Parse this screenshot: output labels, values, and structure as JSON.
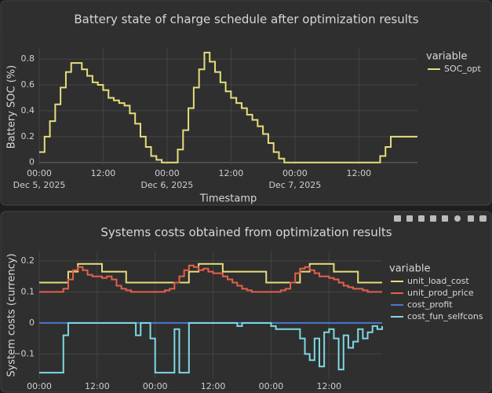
{
  "chart_data": [
    {
      "type": "line",
      "line_shape": "hv",
      "title": "Battery state of charge schedule after optimization results",
      "xlabel": "Timestamp",
      "ylabel": "Battery SOC (%)",
      "legend_title": "variable",
      "legend": "right",
      "grid": true,
      "x": [
        "2025-12-05 00:00",
        "2025-12-05 01:00",
        "2025-12-05 02:00",
        "2025-12-05 03:00",
        "2025-12-05 04:00",
        "2025-12-05 05:00",
        "2025-12-05 06:00",
        "2025-12-05 07:00",
        "2025-12-05 08:00",
        "2025-12-05 09:00",
        "2025-12-05 10:00",
        "2025-12-05 11:00",
        "2025-12-05 12:00",
        "2025-12-05 13:00",
        "2025-12-05 14:00",
        "2025-12-05 15:00",
        "2025-12-05 16:00",
        "2025-12-05 17:00",
        "2025-12-05 18:00",
        "2025-12-05 19:00",
        "2025-12-05 20:00",
        "2025-12-05 21:00",
        "2025-12-05 22:00",
        "2025-12-05 23:00",
        "2025-12-06 00:00",
        "2025-12-06 01:00",
        "2025-12-06 02:00",
        "2025-12-06 03:00",
        "2025-12-06 04:00",
        "2025-12-06 05:00",
        "2025-12-06 06:00",
        "2025-12-06 07:00",
        "2025-12-06 08:00",
        "2025-12-06 09:00",
        "2025-12-06 10:00",
        "2025-12-06 11:00",
        "2025-12-06 12:00",
        "2025-12-06 13:00",
        "2025-12-06 14:00",
        "2025-12-06 15:00",
        "2025-12-06 16:00",
        "2025-12-06 17:00",
        "2025-12-06 18:00",
        "2025-12-06 19:00",
        "2025-12-06 20:00",
        "2025-12-06 21:00",
        "2025-12-06 22:00",
        "2025-12-06 23:00",
        "2025-12-07 00:00",
        "2025-12-07 01:00",
        "2025-12-07 02:00",
        "2025-12-07 03:00",
        "2025-12-07 04:00",
        "2025-12-07 05:00",
        "2025-12-07 06:00",
        "2025-12-07 07:00",
        "2025-12-07 08:00",
        "2025-12-07 09:00",
        "2025-12-07 10:00",
        "2025-12-07 11:00",
        "2025-12-07 12:00",
        "2025-12-07 13:00",
        "2025-12-07 14:00",
        "2025-12-07 15:00",
        "2025-12-07 16:00",
        "2025-12-07 17:00",
        "2025-12-07 18:00",
        "2025-12-07 19:00",
        "2025-12-07 20:00",
        "2025-12-07 21:00",
        "2025-12-07 22:00",
        "2025-12-07 23:00"
      ],
      "series": [
        {
          "name": "SOC_opt",
          "color": "#e6dd7c",
          "values": [
            0.08,
            0.2,
            0.32,
            0.45,
            0.58,
            0.7,
            0.77,
            0.77,
            0.72,
            0.67,
            0.62,
            0.6,
            0.56,
            0.5,
            0.48,
            0.46,
            0.44,
            0.38,
            0.3,
            0.2,
            0.12,
            0.05,
            0.02,
            0,
            0,
            0,
            0.1,
            0.25,
            0.42,
            0.58,
            0.72,
            0.85,
            0.78,
            0.7,
            0.62,
            0.55,
            0.5,
            0.46,
            0.42,
            0.37,
            0.33,
            0.28,
            0.22,
            0.15,
            0.08,
            0.03,
            0,
            0,
            0,
            0,
            0,
            0,
            0,
            0,
            0,
            0,
            0,
            0,
            0,
            0,
            0,
            0,
            0,
            0,
            0.05,
            0.12,
            0.2,
            0.2,
            0.2,
            0.2,
            0.2,
            0.2
          ]
        }
      ],
      "xlim": [
        "2025-12-05 00:00",
        "2025-12-07 23:00"
      ],
      "xticks": [
        {
          "value": "2025-12-05 00:00",
          "label": [
            "00:00",
            "Dec 5, 2025"
          ]
        },
        {
          "value": "2025-12-05 12:00",
          "label": "12:00"
        },
        {
          "value": "2025-12-06 00:00",
          "label": [
            "00:00",
            "Dec 6, 2025"
          ]
        },
        {
          "value": "2025-12-06 12:00",
          "label": "12:00"
        },
        {
          "value": "2025-12-07 00:00",
          "label": [
            "00:00",
            "Dec 7, 2025"
          ]
        },
        {
          "value": "2025-12-07 12:00",
          "label": "12:00"
        }
      ],
      "ylim": [
        -0.02,
        0.88
      ],
      "yticks": [
        0,
        0.2,
        0.4,
        0.6,
        0.8
      ]
    },
    {
      "type": "line",
      "line_shape": "hv",
      "title": "Systems costs obtained from optimization results",
      "ylabel": "System costs (currency)",
      "legend_title": "variable",
      "legend": "right",
      "grid": true,
      "x": [
        "2025-12-05 00:00",
        "2025-12-05 01:00",
        "2025-12-05 02:00",
        "2025-12-05 03:00",
        "2025-12-05 04:00",
        "2025-12-05 05:00",
        "2025-12-05 06:00",
        "2025-12-05 07:00",
        "2025-12-05 08:00",
        "2025-12-05 09:00",
        "2025-12-05 10:00",
        "2025-12-05 11:00",
        "2025-12-05 12:00",
        "2025-12-05 13:00",
        "2025-12-05 14:00",
        "2025-12-05 15:00",
        "2025-12-05 16:00",
        "2025-12-05 17:00",
        "2025-12-05 18:00",
        "2025-12-05 19:00",
        "2025-12-05 20:00",
        "2025-12-05 21:00",
        "2025-12-05 22:00",
        "2025-12-05 23:00",
        "2025-12-06 00:00",
        "2025-12-06 01:00",
        "2025-12-06 02:00",
        "2025-12-06 03:00",
        "2025-12-06 04:00",
        "2025-12-06 05:00",
        "2025-12-06 06:00",
        "2025-12-06 07:00",
        "2025-12-06 08:00",
        "2025-12-06 09:00",
        "2025-12-06 10:00",
        "2025-12-06 11:00",
        "2025-12-06 12:00",
        "2025-12-06 13:00",
        "2025-12-06 14:00",
        "2025-12-06 15:00",
        "2025-12-06 16:00",
        "2025-12-06 17:00",
        "2025-12-06 18:00",
        "2025-12-06 19:00",
        "2025-12-06 20:00",
        "2025-12-06 21:00",
        "2025-12-06 22:00",
        "2025-12-06 23:00",
        "2025-12-07 00:00",
        "2025-12-07 01:00",
        "2025-12-07 02:00",
        "2025-12-07 03:00",
        "2025-12-07 04:00",
        "2025-12-07 05:00",
        "2025-12-07 06:00",
        "2025-12-07 07:00",
        "2025-12-07 08:00",
        "2025-12-07 09:00",
        "2025-12-07 10:00",
        "2025-12-07 11:00",
        "2025-12-07 12:00",
        "2025-12-07 13:00",
        "2025-12-07 14:00",
        "2025-12-07 15:00",
        "2025-12-07 16:00",
        "2025-12-07 17:00",
        "2025-12-07 18:00",
        "2025-12-07 19:00",
        "2025-12-07 20:00",
        "2025-12-07 21:00",
        "2025-12-07 22:00",
        "2025-12-07 23:00"
      ],
      "series": [
        {
          "name": "unit_load_cost",
          "color": "#e6dd7c",
          "values": [
            0.13,
            0.13,
            0.13,
            0.13,
            0.13,
            0.13,
            0.165,
            0.165,
            0.19,
            0.19,
            0.19,
            0.19,
            0.19,
            0.165,
            0.165,
            0.165,
            0.165,
            0.165,
            0.13,
            0.13,
            0.13,
            0.13,
            0.13,
            0.13,
            0.13,
            0.13,
            0.13,
            0.13,
            0.13,
            0.13,
            0.13,
            0.165,
            0.165,
            0.19,
            0.19,
            0.19,
            0.19,
            0.19,
            0.165,
            0.165,
            0.165,
            0.165,
            0.165,
            0.165,
            0.165,
            0.165,
            0.165,
            0.13,
            0.13,
            0.13,
            0.13,
            0.13,
            0.13,
            0.13,
            0.165,
            0.165,
            0.19,
            0.19,
            0.19,
            0.19,
            0.19,
            0.165,
            0.165,
            0.165,
            0.165,
            0.165,
            0.13,
            0.13,
            0.13,
            0.13,
            0.13,
            0.13
          ]
        },
        {
          "name": "unit_prod_price",
          "color": "#e5604a",
          "values": [
            0.1,
            0.1,
            0.1,
            0.1,
            0.1,
            0.11,
            0.14,
            0.17,
            0.18,
            0.17,
            0.155,
            0.15,
            0.15,
            0.145,
            0.15,
            0.14,
            0.12,
            0.11,
            0.105,
            0.1,
            0.1,
            0.1,
            0.1,
            0.1,
            0.1,
            0.1,
            0.105,
            0.11,
            0.13,
            0.15,
            0.17,
            0.185,
            0.18,
            0.17,
            0.175,
            0.165,
            0.16,
            0.16,
            0.15,
            0.14,
            0.13,
            0.12,
            0.11,
            0.105,
            0.1,
            0.1,
            0.1,
            0.1,
            0.1,
            0.1,
            0.105,
            0.11,
            0.13,
            0.16,
            0.175,
            0.18,
            0.17,
            0.16,
            0.15,
            0.15,
            0.145,
            0.14,
            0.13,
            0.12,
            0.115,
            0.11,
            0.11,
            0.105,
            0.1,
            0.1,
            0.1,
            0.1
          ]
        },
        {
          "name": "cost_profit",
          "color": "#4a78d0",
          "values": [
            0,
            0,
            0,
            0,
            0,
            0,
            0,
            0,
            0,
            0,
            0,
            0,
            0,
            0,
            0,
            0,
            0,
            0,
            0,
            0,
            0,
            0,
            0,
            0,
            0,
            0,
            0,
            0,
            0,
            0,
            0,
            0,
            0,
            0,
            0,
            0,
            0,
            0,
            0,
            0,
            0,
            0,
            0,
            0,
            0,
            0,
            0,
            0,
            0,
            0,
            0,
            0,
            0,
            0,
            0,
            0,
            0,
            0,
            0,
            0,
            0,
            0,
            0,
            0,
            0,
            0,
            0,
            0,
            0,
            0,
            0,
            0
          ]
        },
        {
          "name": "cost_fun_selfcons",
          "color": "#7fd8e2",
          "values": [
            -0.16,
            -0.16,
            -0.16,
            -0.16,
            -0.16,
            -0.04,
            0,
            0,
            0,
            0,
            0,
            0,
            0,
            0,
            0,
            0,
            0,
            0,
            0,
            0,
            -0.04,
            0,
            0,
            -0.05,
            -0.16,
            -0.16,
            -0.16,
            -0.16,
            -0.02,
            -0.16,
            -0.16,
            0,
            0,
            0,
            0,
            0,
            0,
            0,
            0,
            0,
            0,
            -0.01,
            0,
            0,
            0,
            0,
            0,
            0,
            -0.01,
            -0.02,
            -0.02,
            -0.02,
            -0.02,
            -0.02,
            -0.05,
            -0.1,
            -0.12,
            -0.05,
            -0.14,
            -0.03,
            -0.02,
            -0.05,
            -0.15,
            -0.04,
            -0.08,
            -0.06,
            -0.02,
            -0.05,
            -0.03,
            -0.01,
            -0.02,
            -0.01
          ]
        }
      ],
      "xlim": [
        "2025-12-05 00:00",
        "2025-12-07 23:00"
      ],
      "xticks": [
        {
          "value": "2025-12-05 00:00",
          "label": "00:00"
        },
        {
          "value": "2025-12-05 12:00",
          "label": "12:00"
        },
        {
          "value": "2025-12-06 00:00",
          "label": "00:00"
        },
        {
          "value": "2025-12-06 12:00",
          "label": "12:00"
        },
        {
          "value": "2025-12-07 00:00",
          "label": "00:00"
        },
        {
          "value": "2025-12-07 12:00",
          "label": "12:00"
        }
      ],
      "ylim": [
        -0.18,
        0.23
      ],
      "yticks": [
        {
          "value": -0.1,
          "label": "−0.1"
        },
        0,
        0.1,
        0.2
      ]
    }
  ]
}
